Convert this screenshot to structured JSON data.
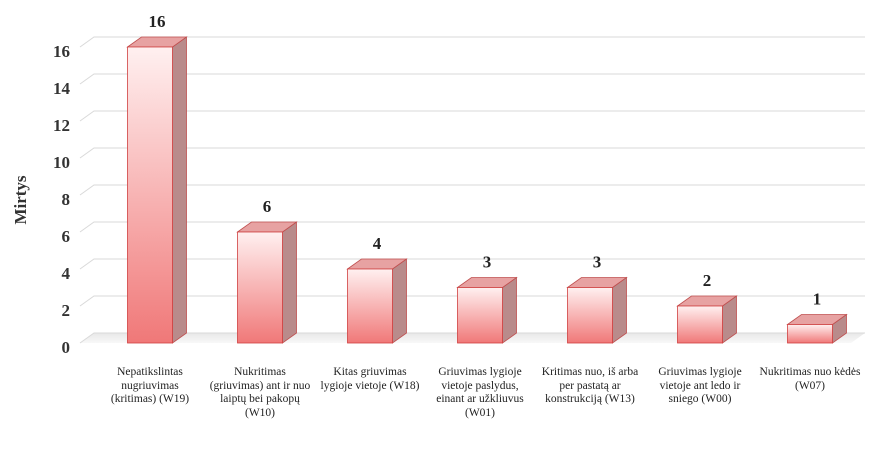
{
  "chart_data": {
    "type": "bar3d",
    "y_label": "Mirtys",
    "categories": [
      "Nepatikslintas nugriuvimas (kritimas) (W19)",
      "Nukritimas (griuvimas) ant ir nuo laiptų bei pakopų (W10)",
      "Kitas griuvimas lygioje vietoje (W18)",
      "Griuvimas lygioje vietoje paslydus, einant ar užkliuvus (W01)",
      "Kritimas nuo, iš arba per pastatą ar konstrukciją (W13)",
      "Griuvimas lygioje vietoje ant ledo ir sniego (W00)",
      "Nukritimas nuo kėdės (W07)"
    ],
    "values": [
      16,
      6,
      4,
      3,
      3,
      2,
      1
    ],
    "color": "#f07878",
    "ylim": [
      0,
      16
    ],
    "yticks": [
      0,
      2,
      4,
      6,
      8,
      10,
      12,
      14,
      16
    ],
    "grid": true
  }
}
